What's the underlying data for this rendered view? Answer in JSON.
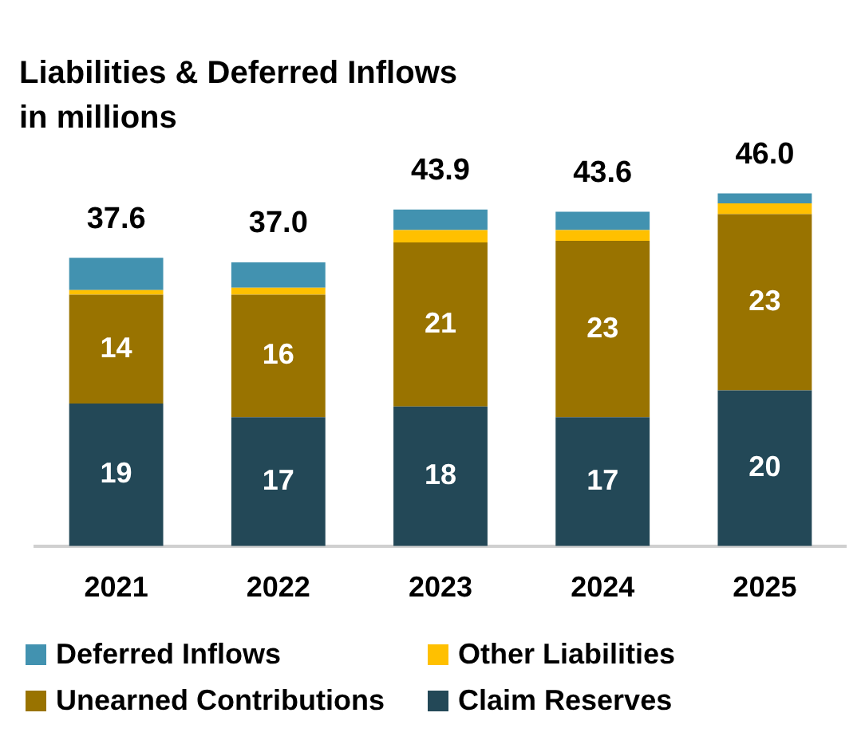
{
  "chart_data": {
    "type": "bar",
    "title": "Liabilities & Deferred Inflows",
    "subtitle": "in millions",
    "categories": [
      "2021",
      "2022",
      "2023",
      "2024",
      "2025"
    ],
    "stacked": true,
    "grid": false,
    "legend": "bottom",
    "series": [
      {
        "name": "Claim Reserves",
        "color": "#234857",
        "values": [
          18.6,
          16.8,
          18.2,
          16.8,
          20.3
        ],
        "value_labels": [
          "19",
          "17",
          "18",
          "17",
          "20"
        ]
      },
      {
        "name": "Unearned Contributions",
        "color": "#997300",
        "values": [
          14.2,
          16.0,
          21.4,
          23.0,
          23.0
        ],
        "value_labels": [
          "14",
          "16",
          "21",
          "23",
          "23"
        ]
      },
      {
        "name": "Other Liabilities",
        "color": "#ffc000",
        "values": [
          0.6,
          0.9,
          1.6,
          1.4,
          1.4
        ]
      },
      {
        "name": "Deferred Inflows",
        "color": "#4292b0",
        "values": [
          4.2,
          3.3,
          2.7,
          2.4,
          1.3
        ]
      }
    ],
    "totals": [
      "37.6",
      "37.0",
      "43.9",
      "43.6",
      "46.0"
    ]
  }
}
